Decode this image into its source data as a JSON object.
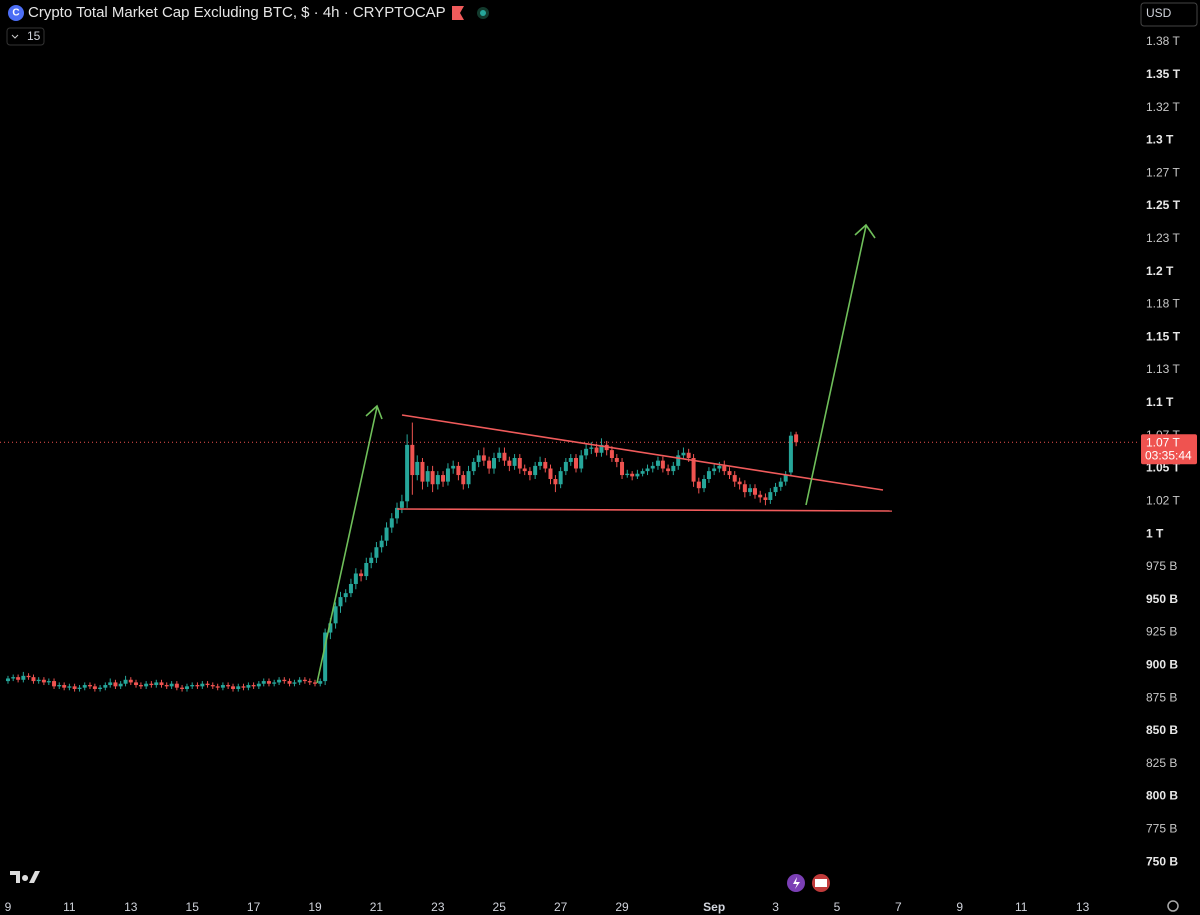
{
  "chart_data": {
    "type": "candlestick",
    "title": "Crypto Total Market Cap Excluding BTC, $ · 4h · CRYPTOCAP",
    "indicator_count": "15",
    "currency": "USD",
    "up_color": "#26a69a",
    "down_color": "#ef5350",
    "grid": false,
    "last_price": {
      "value": 1070,
      "label": "1.07 T"
    },
    "countdown": "03:35:44",
    "xlim": [
      8.74,
      45.87
    ],
    "xticks": [
      9,
      11,
      13,
      15,
      17,
      19,
      21,
      23,
      25,
      27,
      29,
      {
        "value": 32,
        "label": "Sep"
      },
      {
        "value": 34,
        "label": "3"
      },
      {
        "value": 36,
        "label": "5"
      },
      {
        "value": 38,
        "label": "7"
      },
      {
        "value": 40,
        "label": "9"
      },
      {
        "value": 42,
        "label": "11"
      },
      {
        "value": 44,
        "label": "13"
      }
    ],
    "ylim": [
      725,
      1407
    ],
    "yticks": [
      {
        "value": 750,
        "label": "750 B"
      },
      {
        "value": 775,
        "label": "775 B"
      },
      {
        "value": 800,
        "label": "800 B"
      },
      {
        "value": 825,
        "label": "825 B"
      },
      {
        "value": 850,
        "label": "850 B"
      },
      {
        "value": 875,
        "label": "875 B"
      },
      {
        "value": 900,
        "label": "900 B"
      },
      {
        "value": 925,
        "label": "925 B"
      },
      {
        "value": 950,
        "label": "950 B"
      },
      {
        "value": 975,
        "label": "975 B"
      },
      {
        "value": 1000,
        "label": "1 T"
      },
      {
        "value": 1025,
        "label": "1.02 T"
      },
      {
        "value": 1050,
        "label": "1.05 T"
      },
      {
        "value": 1075,
        "label": "1.07 T"
      },
      {
        "value": 1100,
        "label": "1.1 T"
      },
      {
        "value": 1125,
        "label": "1.13 T"
      },
      {
        "value": 1150,
        "label": "1.15 T"
      },
      {
        "value": 1175,
        "label": "1.18 T"
      },
      {
        "value": 1200,
        "label": "1.2 T"
      },
      {
        "value": 1225,
        "label": "1.23 T"
      },
      {
        "value": 1250,
        "label": "1.25 T"
      },
      {
        "value": 1275,
        "label": "1.27 T"
      },
      {
        "value": 1300,
        "label": "1.3 T"
      },
      {
        "value": 1325,
        "label": "1.32 T"
      },
      {
        "value": 1350,
        "label": "1.35 T"
      },
      {
        "value": 1375,
        "label": "1.38 T"
      }
    ],
    "x": [
      9,
      9.17,
      9.33,
      9.5,
      9.67,
      9.83,
      10,
      10.17,
      10.33,
      10.5,
      10.67,
      10.83,
      11,
      11.17,
      11.33,
      11.5,
      11.67,
      11.83,
      12,
      12.17,
      12.33,
      12.5,
      12.67,
      12.83,
      13,
      13.17,
      13.33,
      13.5,
      13.67,
      13.83,
      14,
      14.17,
      14.33,
      14.5,
      14.67,
      14.83,
      15,
      15.17,
      15.33,
      15.5,
      15.67,
      15.83,
      16,
      16.17,
      16.33,
      16.5,
      16.67,
      16.83,
      17,
      17.17,
      17.33,
      17.5,
      17.67,
      17.83,
      18,
      18.17,
      18.33,
      18.5,
      18.67,
      18.83,
      19,
      19.17,
      19.33,
      19.5,
      19.67,
      19.83,
      20,
      20.17,
      20.33,
      20.5,
      20.67,
      20.83,
      21,
      21.17,
      21.33,
      21.5,
      21.67,
      21.83,
      22,
      22.17,
      22.33,
      22.5,
      22.67,
      22.83,
      23,
      23.17,
      23.33,
      23.5,
      23.67,
      23.83,
      24,
      24.17,
      24.33,
      24.5,
      24.67,
      24.83,
      25,
      25.17,
      25.33,
      25.5,
      25.67,
      25.83,
      26,
      26.17,
      26.33,
      26.5,
      26.67,
      26.83,
      27,
      27.17,
      27.33,
      27.5,
      27.67,
      27.83,
      28,
      28.17,
      28.33,
      28.5,
      28.67,
      28.83,
      29,
      29.17,
      29.33,
      29.5,
      29.67,
      29.83,
      30,
      30.17,
      30.33,
      30.5,
      30.67,
      30.83,
      31,
      31.17,
      31.33,
      31.5,
      31.67,
      31.83,
      32,
      32.17,
      32.33,
      32.5,
      32.67,
      32.83,
      33,
      33.17,
      33.33,
      33.5,
      33.67,
      33.83,
      34,
      34.17,
      34.33,
      34.5,
      34.67
    ],
    "open": [
      888,
      890,
      891,
      889,
      892,
      891,
      888,
      889,
      887,
      888,
      884,
      885,
      883,
      884,
      882,
      883,
      885,
      884,
      882,
      883,
      885,
      887,
      884,
      886,
      889,
      887,
      885,
      884,
      886,
      885,
      887,
      885,
      884,
      886,
      883,
      882,
      884,
      885,
      884,
      886,
      885,
      884,
      883,
      885,
      884,
      882,
      884,
      883,
      885,
      884,
      886,
      888,
      886,
      887,
      889,
      888,
      886,
      887,
      889,
      888,
      887,
      886,
      888,
      925,
      932,
      945,
      952,
      955,
      962,
      970,
      968,
      978,
      982,
      990,
      995,
      1005,
      1012,
      1020,
      1025,
      1068,
      1045,
      1055,
      1040,
      1048,
      1038,
      1045,
      1040,
      1050,
      1052,
      1045,
      1038,
      1048,
      1055,
      1060,
      1056,
      1050,
      1058,
      1062,
      1056,
      1052,
      1058,
      1050,
      1048,
      1045,
      1052,
      1055,
      1050,
      1042,
      1038,
      1048,
      1055,
      1058,
      1050,
      1060,
      1065,
      1066,
      1062,
      1068,
      1064,
      1058,
      1055,
      1045,
      1046,
      1044,
      1046,
      1048,
      1050,
      1052,
      1056,
      1050,
      1048,
      1052,
      1060,
      1062,
      1058,
      1040,
      1035,
      1042,
      1048,
      1050,
      1052,
      1048,
      1045,
      1040,
      1038,
      1032,
      1035,
      1030,
      1028,
      1026,
      1032,
      1036,
      1040,
      1047,
      1076
    ],
    "high": [
      892,
      893,
      893,
      895,
      894,
      893,
      891,
      891,
      890,
      890,
      887,
      887,
      886,
      886,
      885,
      887,
      887,
      886,
      885,
      887,
      890,
      889,
      888,
      892,
      891,
      889,
      887,
      888,
      888,
      889,
      889,
      887,
      888,
      888,
      885,
      886,
      887,
      887,
      888,
      888,
      887,
      886,
      887,
      887,
      886,
      886,
      886,
      887,
      887,
      888,
      890,
      890,
      889,
      891,
      891,
      890,
      889,
      891,
      891,
      890,
      889,
      890,
      928,
      936,
      948,
      956,
      958,
      966,
      974,
      973,
      982,
      986,
      994,
      999,
      1009,
      1016,
      1024,
      1030,
      1076,
      1085,
      1060,
      1058,
      1052,
      1052,
      1048,
      1048,
      1054,
      1056,
      1055,
      1048,
      1052,
      1058,
      1064,
      1066,
      1059,
      1062,
      1066,
      1066,
      1059,
      1061,
      1061,
      1053,
      1051,
      1055,
      1059,
      1058,
      1053,
      1045,
      1051,
      1058,
      1061,
      1061,
      1064,
      1069,
      1070,
      1069,
      1073,
      1071,
      1067,
      1061,
      1058,
      1049,
      1048,
      1049,
      1050,
      1053,
      1055,
      1059,
      1059,
      1053,
      1055,
      1064,
      1066,
      1065,
      1061,
      1043,
      1045,
      1051,
      1053,
      1055,
      1056,
      1051,
      1048,
      1043,
      1041,
      1038,
      1038,
      1033,
      1031,
      1035,
      1039,
      1043,
      1048,
      1078,
      1078
    ],
    "low": [
      886,
      888,
      887,
      887,
      889,
      886,
      886,
      885,
      885,
      882,
      882,
      881,
      881,
      880,
      880,
      881,
      882,
      880,
      880,
      881,
      883,
      882,
      882,
      884,
      885,
      883,
      882,
      882,
      883,
      883,
      883,
      882,
      882,
      881,
      880,
      880,
      882,
      882,
      882,
      883,
      882,
      881,
      881,
      882,
      880,
      880,
      881,
      881,
      882,
      882,
      884,
      884,
      884,
      885,
      886,
      884,
      884,
      885,
      886,
      885,
      884,
      884,
      885,
      920,
      928,
      940,
      948,
      952,
      958,
      964,
      965,
      974,
      978,
      986,
      991,
      1001,
      1008,
      1016,
      1020,
      1030,
      1041,
      1034,
      1036,
      1032,
      1034,
      1036,
      1037,
      1046,
      1041,
      1034,
      1035,
      1045,
      1051,
      1052,
      1046,
      1046,
      1055,
      1052,
      1048,
      1049,
      1046,
      1045,
      1041,
      1042,
      1049,
      1047,
      1038,
      1032,
      1035,
      1045,
      1052,
      1047,
      1047,
      1057,
      1061,
      1059,
      1059,
      1060,
      1055,
      1051,
      1042,
      1043,
      1041,
      1042,
      1044,
      1045,
      1047,
      1049,
      1047,
      1045,
      1045,
      1049,
      1057,
      1055,
      1036,
      1031,
      1032,
      1039,
      1045,
      1047,
      1045,
      1042,
      1036,
      1034,
      1028,
      1029,
      1027,
      1024,
      1022,
      1023,
      1029,
      1033,
      1037,
      1044,
      1067
    ],
    "close": [
      890,
      891,
      889,
      892,
      891,
      888,
      889,
      887,
      888,
      884,
      885,
      883,
      884,
      882,
      883,
      885,
      884,
      882,
      883,
      885,
      887,
      884,
      886,
      889,
      887,
      885,
      884,
      886,
      885,
      887,
      885,
      884,
      886,
      883,
      882,
      884,
      885,
      884,
      886,
      885,
      884,
      883,
      885,
      884,
      882,
      884,
      883,
      885,
      884,
      886,
      888,
      886,
      887,
      889,
      888,
      886,
      887,
      889,
      888,
      887,
      886,
      888,
      925,
      932,
      945,
      952,
      955,
      962,
      970,
      968,
      978,
      982,
      990,
      995,
      1005,
      1012,
      1020,
      1025,
      1068,
      1045,
      1055,
      1040,
      1048,
      1038,
      1045,
      1040,
      1050,
      1052,
      1045,
      1038,
      1048,
      1055,
      1060,
      1056,
      1050,
      1058,
      1062,
      1056,
      1052,
      1058,
      1050,
      1048,
      1045,
      1052,
      1055,
      1050,
      1042,
      1038,
      1048,
      1055,
      1058,
      1050,
      1060,
      1065,
      1066,
      1062,
      1068,
      1064,
      1058,
      1055,
      1045,
      1046,
      1044,
      1046,
      1048,
      1050,
      1052,
      1056,
      1050,
      1048,
      1052,
      1060,
      1062,
      1058,
      1040,
      1035,
      1042,
      1048,
      1050,
      1052,
      1048,
      1045,
      1040,
      1038,
      1032,
      1035,
      1030,
      1028,
      1026,
      1032,
      1036,
      1040,
      1045,
      1075,
      1070
    ]
  }
}
